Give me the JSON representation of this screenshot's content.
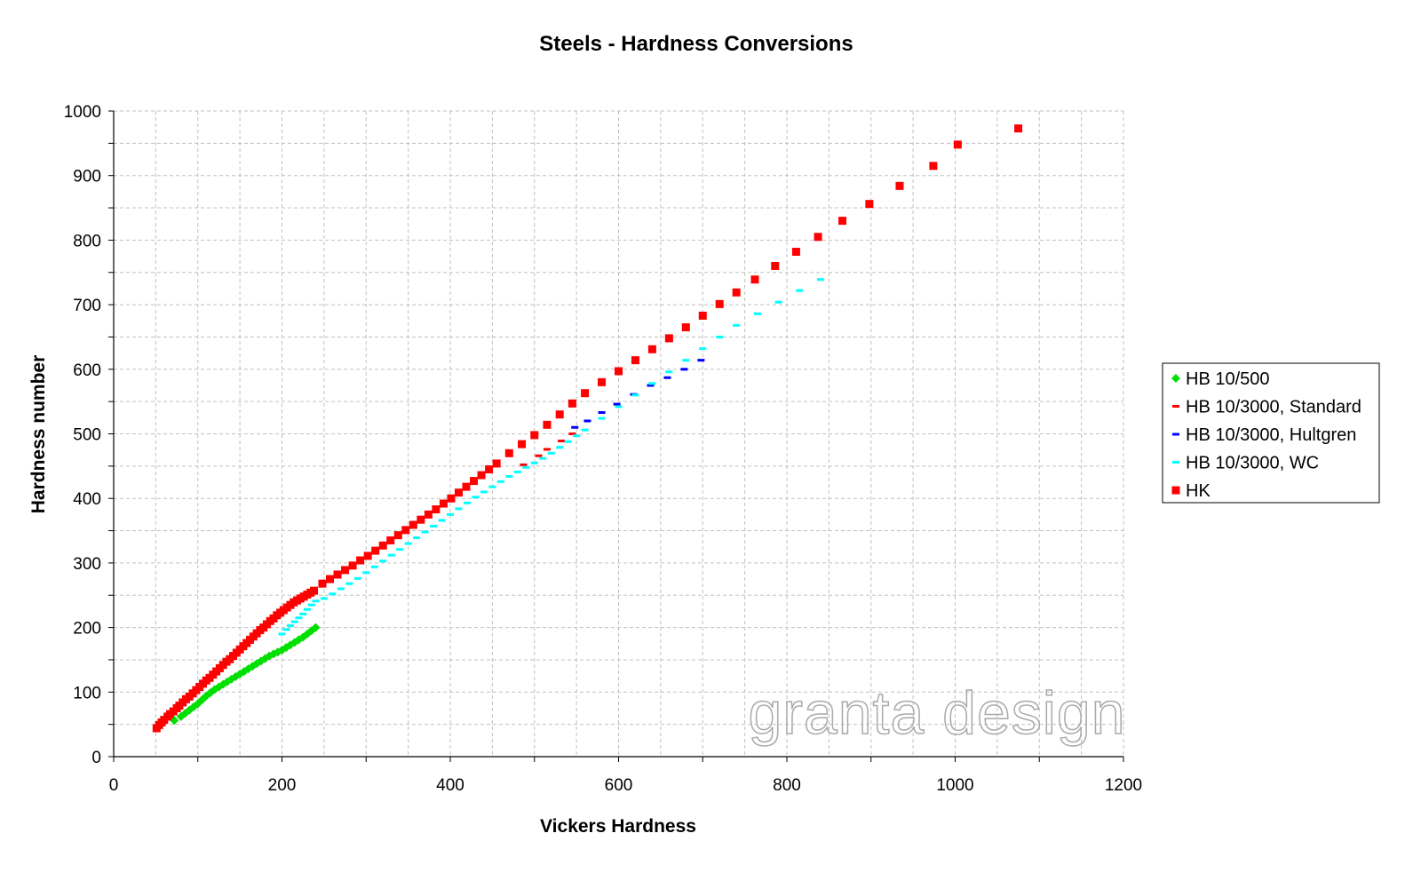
{
  "chart_data": {
    "type": "scatter",
    "title": "Steels - Hardness Conversions",
    "xlabel": "Vickers Hardness",
    "ylabel": "Hardness number",
    "xlim": [
      0,
      1200
    ],
    "ylim": [
      0,
      1000
    ],
    "xticks": [
      "0",
      "200",
      "400",
      "600",
      "800",
      "1000",
      "1200"
    ],
    "yticks": [
      "0",
      "100",
      "200",
      "300",
      "400",
      "500",
      "600",
      "700",
      "800",
      "900",
      "1000"
    ],
    "grid": true,
    "legend_position": "right",
    "watermark": "granta design",
    "series": [
      {
        "name": "HB 10/500",
        "color": "#00e000",
        "marker": "diamond",
        "points": [
          [
            72,
            56
          ],
          [
            80,
            62
          ],
          [
            85,
            67
          ],
          [
            90,
            72
          ],
          [
            95,
            77
          ],
          [
            100,
            82
          ],
          [
            105,
            88
          ],
          [
            110,
            94
          ],
          [
            115,
            99
          ],
          [
            120,
            104
          ],
          [
            125,
            108
          ],
          [
            130,
            112
          ],
          [
            135,
            116
          ],
          [
            140,
            120
          ],
          [
            145,
            124
          ],
          [
            150,
            128
          ],
          [
            155,
            132
          ],
          [
            160,
            136
          ],
          [
            165,
            140
          ],
          [
            170,
            144
          ],
          [
            175,
            148
          ],
          [
            180,
            152
          ],
          [
            185,
            156
          ],
          [
            190,
            159
          ],
          [
            195,
            162
          ],
          [
            200,
            165
          ],
          [
            205,
            169
          ],
          [
            210,
            173
          ],
          [
            215,
            177
          ],
          [
            220,
            181
          ],
          [
            225,
            185
          ],
          [
            230,
            190
          ],
          [
            235,
            195
          ],
          [
            240,
            200
          ]
        ]
      },
      {
        "name": "HB 10/3000, Standard",
        "color": "#ff0000",
        "marker": "dash",
        "points": [
          [
            487,
            452
          ],
          [
            505,
            466
          ],
          [
            515,
            476
          ],
          [
            532,
            489
          ],
          [
            545,
            500
          ]
        ]
      },
      {
        "name": "HB 10/3000, Hultgren",
        "color": "#0000ff",
        "marker": "dash",
        "points": [
          [
            548,
            510
          ],
          [
            563,
            520
          ],
          [
            580,
            533
          ],
          [
            598,
            546
          ],
          [
            618,
            561
          ],
          [
            638,
            575
          ],
          [
            658,
            587
          ],
          [
            678,
            600
          ],
          [
            698,
            614
          ]
        ]
      },
      {
        "name": "HB 10/3000, WC",
        "color": "#00ffff",
        "marker": "dash",
        "points": [
          [
            200,
            190
          ],
          [
            205,
            197
          ],
          [
            210,
            203
          ],
          [
            215,
            209
          ],
          [
            220,
            215
          ],
          [
            225,
            221
          ],
          [
            230,
            228
          ],
          [
            235,
            235
          ],
          [
            240,
            241
          ],
          [
            250,
            245
          ],
          [
            260,
            252
          ],
          [
            270,
            260
          ],
          [
            280,
            268
          ],
          [
            290,
            276
          ],
          [
            300,
            285
          ],
          [
            310,
            294
          ],
          [
            320,
            303
          ],
          [
            330,
            312
          ],
          [
            340,
            321
          ],
          [
            350,
            330
          ],
          [
            360,
            339
          ],
          [
            370,
            348
          ],
          [
            380,
            357
          ],
          [
            390,
            366
          ],
          [
            400,
            375
          ],
          [
            410,
            384
          ],
          [
            420,
            393
          ],
          [
            430,
            402
          ],
          [
            440,
            410
          ],
          [
            450,
            418
          ],
          [
            460,
            426
          ],
          [
            470,
            434
          ],
          [
            480,
            441
          ],
          [
            490,
            448
          ],
          [
            500,
            455
          ],
          [
            510,
            462
          ],
          [
            520,
            470
          ],
          [
            530,
            479
          ],
          [
            540,
            488
          ],
          [
            550,
            497
          ],
          [
            560,
            506
          ],
          [
            580,
            524
          ],
          [
            600,
            542
          ],
          [
            620,
            560
          ],
          [
            640,
            578
          ],
          [
            660,
            596
          ],
          [
            680,
            614
          ],
          [
            700,
            632
          ],
          [
            720,
            650
          ],
          [
            740,
            668
          ],
          [
            765,
            686
          ],
          [
            790,
            704
          ],
          [
            815,
            722
          ],
          [
            840,
            739
          ]
        ]
      },
      {
        "name": "HK",
        "color": "#ff0000",
        "marker": "square",
        "points": [
          [
            51,
            44
          ],
          [
            54,
            49
          ],
          [
            57,
            53
          ],
          [
            60,
            57
          ],
          [
            64,
            62
          ],
          [
            67,
            66
          ],
          [
            71,
            70
          ],
          [
            75,
            75
          ],
          [
            78,
            79
          ],
          [
            82,
            84
          ],
          [
            86,
            89
          ],
          [
            90,
            93
          ],
          [
            94,
            98
          ],
          [
            98,
            103
          ],
          [
            102,
            108
          ],
          [
            106,
            113
          ],
          [
            110,
            118
          ],
          [
            114,
            122
          ],
          [
            118,
            127
          ],
          [
            122,
            132
          ],
          [
            126,
            137
          ],
          [
            130,
            142
          ],
          [
            134,
            147
          ],
          [
            138,
            151
          ],
          [
            142,
            156
          ],
          [
            146,
            161
          ],
          [
            150,
            166
          ],
          [
            154,
            171
          ],
          [
            158,
            176
          ],
          [
            162,
            181
          ],
          [
            166,
            186
          ],
          [
            170,
            191
          ],
          [
            174,
            196
          ],
          [
            178,
            200
          ],
          [
            182,
            205
          ],
          [
            186,
            210
          ],
          [
            190,
            214
          ],
          [
            194,
            219
          ],
          [
            198,
            223
          ],
          [
            202,
            227
          ],
          [
            206,
            231
          ],
          [
            210,
            235
          ],
          [
            214,
            239
          ],
          [
            218,
            242
          ],
          [
            222,
            245
          ],
          [
            226,
            248
          ],
          [
            230,
            251
          ],
          [
            234,
            254
          ],
          [
            238,
            257
          ],
          [
            248,
            268
          ],
          [
            257,
            275
          ],
          [
            266,
            282
          ],
          [
            275,
            289
          ],
          [
            284,
            296
          ],
          [
            293,
            304
          ],
          [
            302,
            311
          ],
          [
            311,
            319
          ],
          [
            320,
            327
          ],
          [
            329,
            335
          ],
          [
            338,
            343
          ],
          [
            347,
            351
          ],
          [
            356,
            359
          ],
          [
            365,
            367
          ],
          [
            374,
            375
          ],
          [
            383,
            383
          ],
          [
            392,
            392
          ],
          [
            401,
            400
          ],
          [
            410,
            409
          ],
          [
            419,
            418
          ],
          [
            428,
            427
          ],
          [
            437,
            436
          ],
          [
            446,
            445
          ],
          [
            455,
            454
          ],
          [
            470,
            470
          ],
          [
            485,
            484
          ],
          [
            500,
            498
          ],
          [
            515,
            514
          ],
          [
            530,
            530
          ],
          [
            545,
            547
          ],
          [
            560,
            563
          ],
          [
            580,
            580
          ],
          [
            600,
            597
          ],
          [
            620,
            614
          ],
          [
            640,
            631
          ],
          [
            660,
            648
          ],
          [
            680,
            665
          ],
          [
            700,
            683
          ],
          [
            720,
            701
          ],
          [
            740,
            719
          ],
          [
            762,
            739
          ],
          [
            786,
            760
          ],
          [
            811,
            782
          ],
          [
            837,
            805
          ],
          [
            866,
            830
          ],
          [
            898,
            856
          ],
          [
            934,
            884
          ],
          [
            974,
            915
          ],
          [
            1003,
            948
          ],
          [
            1075,
            973
          ]
        ]
      }
    ]
  }
}
